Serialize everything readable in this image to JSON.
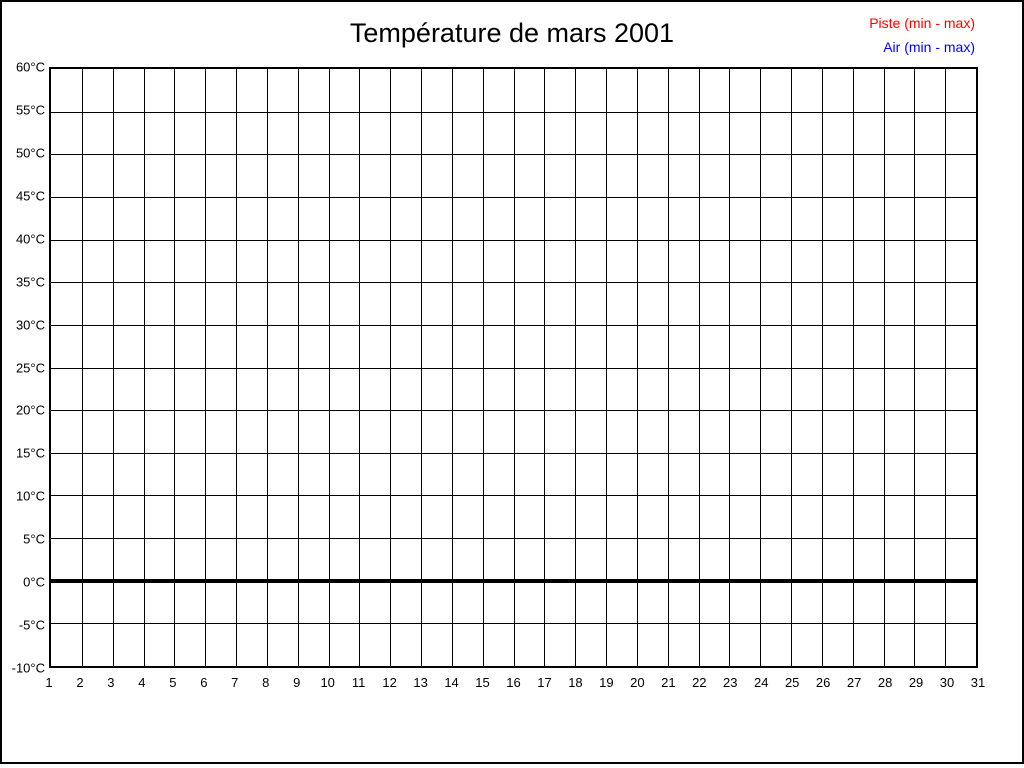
{
  "frame": {
    "background": "#ffffff",
    "border_color": "#000000"
  },
  "chart_data": {
    "type": "line",
    "title": "Température de mars 2001",
    "xlabel": "",
    "ylabel": "",
    "xlim": [
      1,
      31
    ],
    "ylim": [
      -10,
      60
    ],
    "y_tick_step": 5,
    "x_tick_step": 1,
    "grid": true,
    "grid_color": "#000000",
    "x_tick_labels": [
      "1",
      "2",
      "3",
      "4",
      "5",
      "6",
      "7",
      "8",
      "9",
      "10",
      "11",
      "12",
      "13",
      "14",
      "15",
      "16",
      "17",
      "18",
      "19",
      "20",
      "21",
      "22",
      "23",
      "24",
      "25",
      "26",
      "27",
      "28",
      "29",
      "30",
      "31"
    ],
    "y_tick_labels": [
      "60°C",
      "55°C",
      "50°C",
      "45°C",
      "40°C",
      "35°C",
      "30°C",
      "25°C",
      "20°C",
      "15°C",
      "10°C",
      "5°C",
      "0°C",
      "-5°C",
      "-10°C"
    ],
    "zero_line": {
      "value": 0,
      "color": "#000000",
      "thickness": 4
    },
    "legend": {
      "position": "top-right",
      "entries": [
        {
          "label": "Piste (min - max)",
          "color": "#ff0000"
        },
        {
          "label": "Air (min - max)",
          "color": "#0000ff"
        }
      ]
    },
    "series": [
      {
        "name": "Piste (min - max)",
        "color": "#ff0000",
        "values": []
      },
      {
        "name": "Air (min - max)",
        "color": "#0000ff",
        "values": []
      }
    ]
  }
}
